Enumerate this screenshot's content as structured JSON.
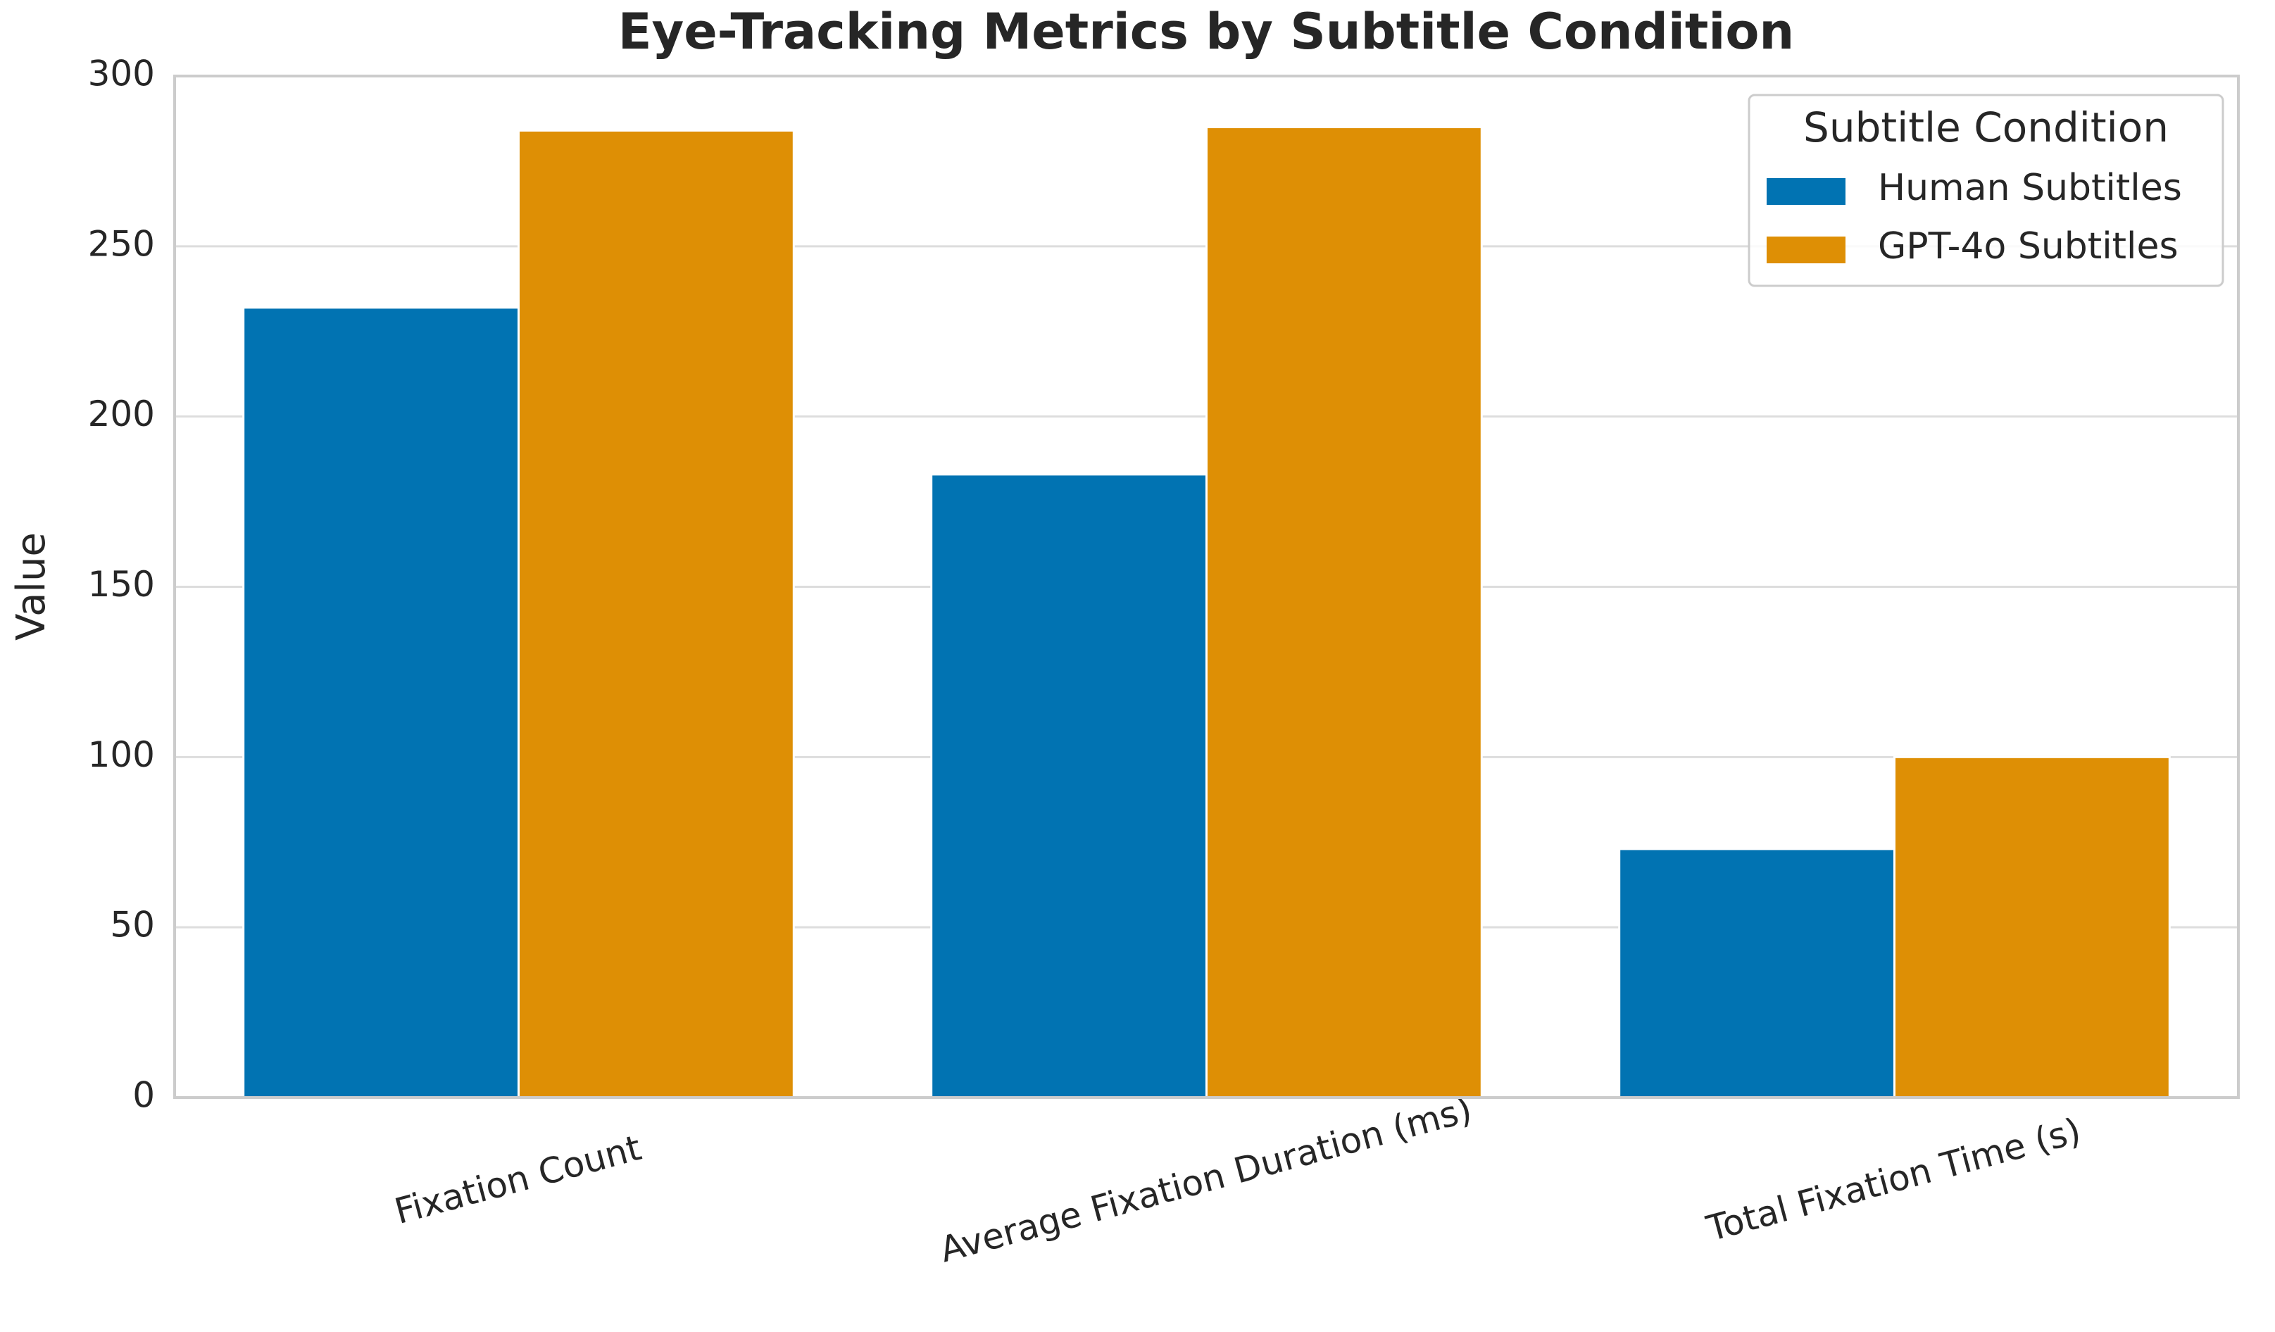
{
  "chart_data": {
    "type": "bar",
    "title": "Eye-Tracking Metrics by Subtitle Condition",
    "y_label": "Value",
    "categories": [
      "Fixation Count",
      "Average Fixation Duration (ms)",
      "Total Fixation Time (s)"
    ],
    "series": [
      {
        "name": "Human Subtitles",
        "color": "#0173b2",
        "values": [
          232,
          183,
          73
        ]
      },
      {
        "name": "GPT-4o Subtitles",
        "color": "#de8f05",
        "values": [
          284,
          285,
          100
        ]
      }
    ],
    "legend_title": "Subtitle Condition",
    "legend_position": "upper right",
    "ylim": [
      0,
      300
    ],
    "yticks": [
      0,
      50,
      100,
      150,
      200,
      250,
      300
    ],
    "grid": true
  }
}
